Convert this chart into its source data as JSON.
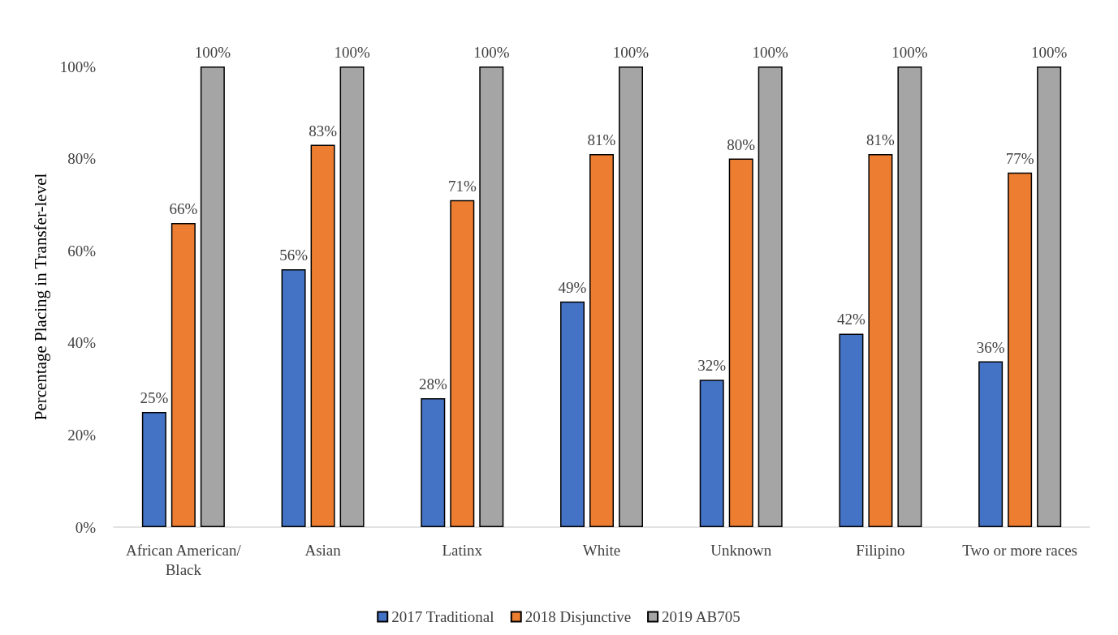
{
  "chart_data": {
    "type": "bar",
    "ylabel": "Percentage Placing in Transfer-level",
    "categories": [
      "African American/Black",
      "Asian",
      "Latinx",
      "White",
      "Unknown",
      "Filipino",
      "Two or more races"
    ],
    "series": [
      {
        "name": "2017 Traditional",
        "color": "#4472c4",
        "values": [
          25,
          56,
          28,
          49,
          32,
          42,
          36
        ],
        "value_labels": [
          "25%",
          "56%",
          "28%",
          "49%",
          "32%",
          "42%",
          "36%"
        ]
      },
      {
        "name": "2018 Disjunctive",
        "color": "#ed7d31",
        "values": [
          66,
          83,
          71,
          81,
          80,
          81,
          77
        ],
        "value_labels": [
          "66%",
          "83%",
          "71%",
          "81%",
          "80%",
          "81%",
          "77%"
        ]
      },
      {
        "name": "2019 AB705",
        "color": "#a5a5a5",
        "values": [
          100,
          100,
          100,
          100,
          100,
          100,
          100
        ],
        "value_labels": [
          "100%",
          "100%",
          "100%",
          "100%",
          "100%",
          "100%",
          "100%"
        ]
      }
    ],
    "ylim": [
      0,
      100
    ],
    "yticks": [
      {
        "value": 0,
        "label": "0%"
      },
      {
        "value": 20,
        "label": "20%"
      },
      {
        "value": 40,
        "label": "40%"
      },
      {
        "value": 60,
        "label": "60%"
      },
      {
        "value": 80,
        "label": "80%"
      },
      {
        "value": 100,
        "label": "100%"
      }
    ],
    "grid": false,
    "legend": "bottom"
  }
}
